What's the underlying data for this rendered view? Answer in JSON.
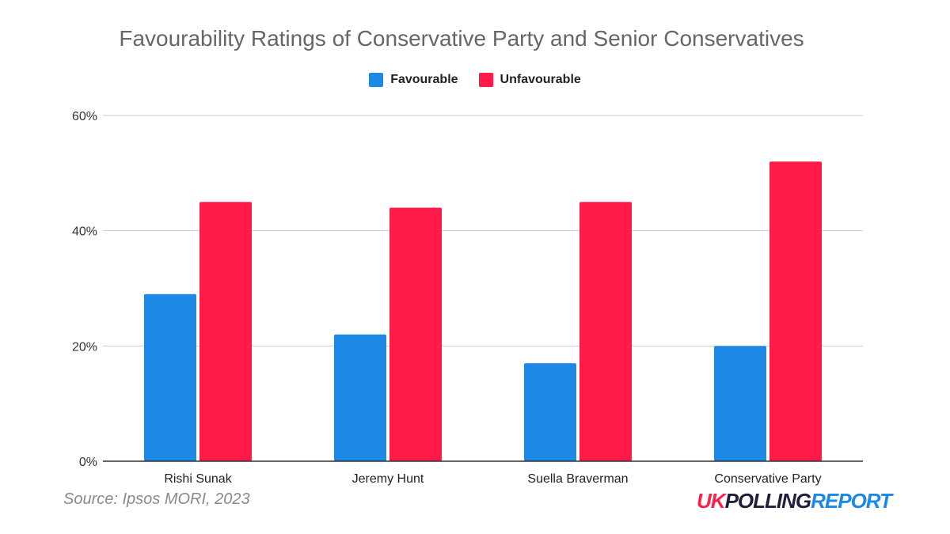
{
  "colors": {
    "favourable": "#1e88e5",
    "unfavourable": "#ff1a48",
    "grid": "#cccccc",
    "axis": "#333333",
    "title": "#666666"
  },
  "source": "Source: Ipsos MORI, 2023",
  "logo": {
    "part1": "UK",
    "part2": "POLLING",
    "part3": "REPORT"
  },
  "chart_data": {
    "type": "bar",
    "title": "Favourability Ratings of Conservative Party and Senior Conservatives",
    "categories": [
      "Rishi Sunak",
      "Jeremy Hunt",
      "Suella Braverman",
      "Conservative Party"
    ],
    "series": [
      {
        "name": "Favourable",
        "values": [
          29,
          22,
          17,
          20
        ],
        "color": "#1e88e5"
      },
      {
        "name": "Unfavourable",
        "values": [
          45,
          44,
          45,
          52
        ],
        "color": "#ff1a48"
      }
    ],
    "y_ticks": [
      "0%",
      "20%",
      "40%",
      "60%"
    ],
    "ylim": [
      0,
      60
    ],
    "y_unit": "%",
    "grid": true,
    "legend_position": "top-center"
  }
}
